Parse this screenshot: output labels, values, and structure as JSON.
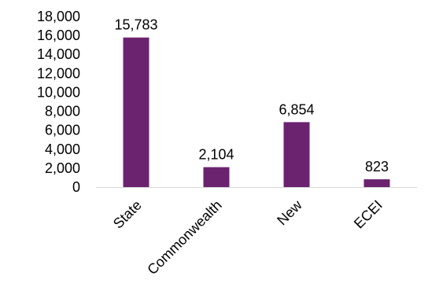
{
  "chart_data": {
    "type": "bar",
    "categories": [
      "State",
      "Commonwealth",
      "New",
      "ECEI"
    ],
    "values": [
      15783,
      2104,
      6854,
      823
    ],
    "value_labels": [
      "15,783",
      "2,104",
      "6,854",
      "823"
    ],
    "yticks": [
      "0",
      "2,000",
      "4,000",
      "6,000",
      "8,000",
      "10,000",
      "12,000",
      "14,000",
      "16,000",
      "18,000"
    ],
    "ylim": [
      0,
      18000
    ],
    "ytick_step": 2000,
    "grid": false,
    "legend": "none",
    "title": "",
    "xlabel": "",
    "ylabel": "",
    "bar_color": "#6B2370"
  }
}
